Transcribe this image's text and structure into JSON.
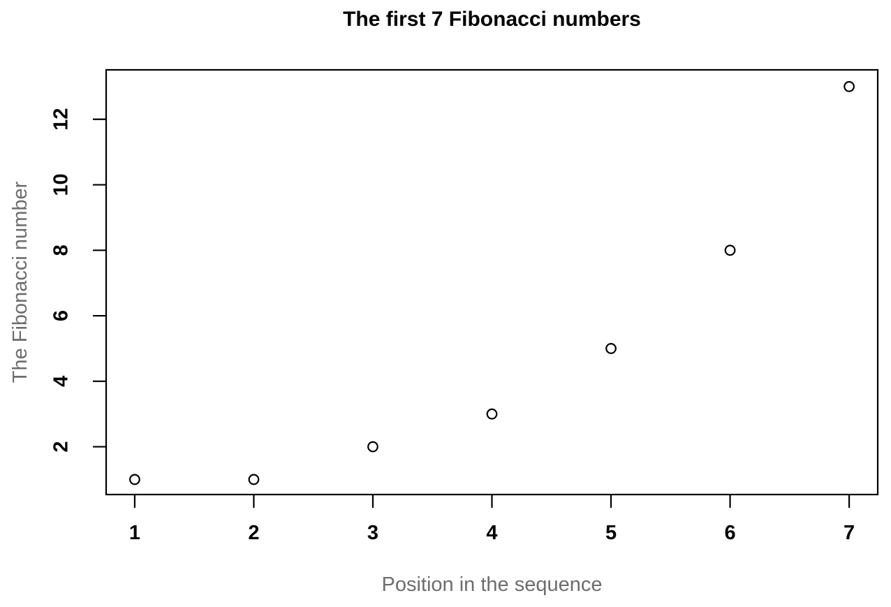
{
  "chart_data": {
    "type": "scatter",
    "title": "The first 7 Fibonacci numbers",
    "xlabel": "Position in the sequence",
    "ylabel": "The Fibonacci number",
    "x": [
      1,
      2,
      3,
      4,
      5,
      6,
      7
    ],
    "y": [
      1,
      1,
      2,
      3,
      5,
      8,
      13
    ],
    "x_ticks": [
      1,
      2,
      3,
      4,
      5,
      6,
      7
    ],
    "y_ticks": [
      2,
      4,
      6,
      8,
      10,
      12
    ],
    "xlim": [
      0.76,
      7.24
    ],
    "ylim": [
      0.54,
      13.51
    ],
    "grid": false,
    "legend": "none",
    "marker": "open-circle",
    "colors": {
      "background": "#ffffff",
      "title": "#000000",
      "axis_labels": "#6d6d6d",
      "tick_labels": "#000000",
      "box": "#000000",
      "points": "#000000"
    }
  }
}
